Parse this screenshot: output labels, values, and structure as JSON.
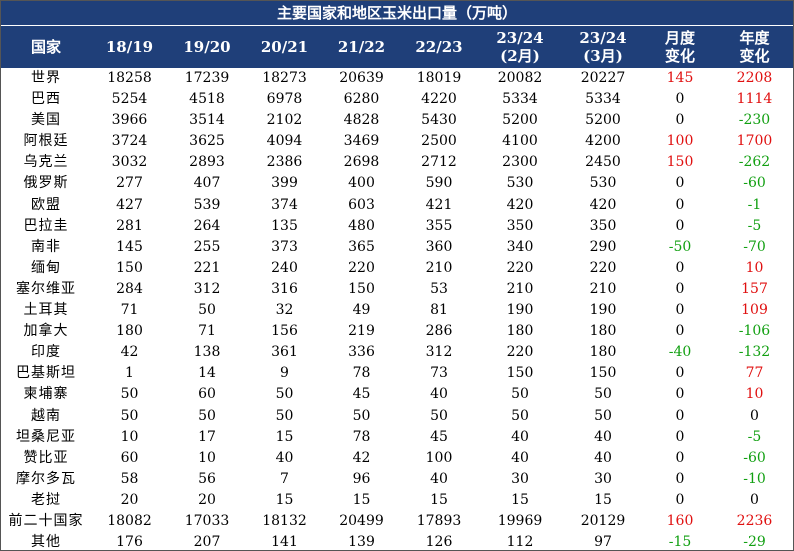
{
  "title": "主要国家和地区玉米出口量（万吨）",
  "headers": [
    [
      "国家"
    ],
    [
      "18/19"
    ],
    [
      "19/20"
    ],
    [
      "20/21"
    ],
    [
      "21/22"
    ],
    [
      "22/23"
    ],
    [
      "23/24",
      "(2月)"
    ],
    [
      "23/24",
      "(3月)"
    ],
    [
      "月度",
      "变化"
    ],
    [
      "年度",
      "变化"
    ]
  ],
  "rows": [
    [
      "世界",
      "18258",
      "17239",
      "18273",
      "20639",
      "18019",
      "20082",
      "20227",
      "145",
      "2208"
    ],
    [
      "巴西",
      "5254",
      "4518",
      "6978",
      "6280",
      "4220",
      "5334",
      "5334",
      "0",
      "1114"
    ],
    [
      "美国",
      "3966",
      "3514",
      "2102",
      "4828",
      "5430",
      "5200",
      "5200",
      "0",
      "-230"
    ],
    [
      "阿根廷",
      "3724",
      "3625",
      "4094",
      "3469",
      "2500",
      "4100",
      "4200",
      "100",
      "1700"
    ],
    [
      "乌克兰",
      "3032",
      "2893",
      "2386",
      "2698",
      "2712",
      "2300",
      "2450",
      "150",
      "-262"
    ],
    [
      "俄罗斯",
      "277",
      "407",
      "399",
      "400",
      "590",
      "530",
      "530",
      "0",
      "-60"
    ],
    [
      "欧盟",
      "427",
      "539",
      "374",
      "603",
      "421",
      "420",
      "420",
      "0",
      "-1"
    ],
    [
      "巴拉圭",
      "281",
      "264",
      "135",
      "480",
      "355",
      "350",
      "350",
      "0",
      "-5"
    ],
    [
      "南非",
      "145",
      "255",
      "373",
      "365",
      "360",
      "340",
      "290",
      "-50",
      "-70"
    ],
    [
      "缅甸",
      "150",
      "221",
      "240",
      "220",
      "210",
      "220",
      "220",
      "0",
      "10"
    ],
    [
      "塞尔维亚",
      "284",
      "312",
      "316",
      "150",
      "53",
      "210",
      "210",
      "0",
      "157"
    ],
    [
      "土耳其",
      "71",
      "50",
      "32",
      "49",
      "81",
      "190",
      "190",
      "0",
      "109"
    ],
    [
      "加拿大",
      "180",
      "71",
      "156",
      "219",
      "286",
      "180",
      "180",
      "0",
      "-106"
    ],
    [
      "印度",
      "42",
      "138",
      "361",
      "336",
      "312",
      "220",
      "180",
      "-40",
      "-132"
    ],
    [
      "巴基斯坦",
      "1",
      "14",
      "9",
      "78",
      "73",
      "150",
      "150",
      "0",
      "77"
    ],
    [
      "柬埔寨",
      "50",
      "60",
      "50",
      "45",
      "40",
      "50",
      "50",
      "0",
      "10"
    ],
    [
      "越南",
      "50",
      "50",
      "50",
      "50",
      "50",
      "50",
      "50",
      "0",
      "0"
    ],
    [
      "坦桑尼亚",
      "10",
      "17",
      "15",
      "78",
      "45",
      "40",
      "40",
      "0",
      "-5"
    ],
    [
      "赞比亚",
      "60",
      "10",
      "40",
      "42",
      "100",
      "40",
      "40",
      "0",
      "-60"
    ],
    [
      "摩尔多瓦",
      "58",
      "56",
      "7",
      "96",
      "40",
      "30",
      "30",
      "0",
      "-10"
    ],
    [
      "老挝",
      "20",
      "20",
      "15",
      "15",
      "15",
      "15",
      "15",
      "0",
      "0"
    ],
    [
      "前二十国家",
      "18082",
      "17033",
      "18132",
      "20499",
      "17893",
      "19969",
      "20129",
      "160",
      "2236"
    ],
    [
      "其他",
      "176",
      "207",
      "141",
      "139",
      "126",
      "112",
      "97",
      "-15",
      "-29"
    ]
  ],
  "colors": {
    "header_bg": "#1f3f79",
    "positive": "#e01010",
    "negative": "#12a012"
  }
}
